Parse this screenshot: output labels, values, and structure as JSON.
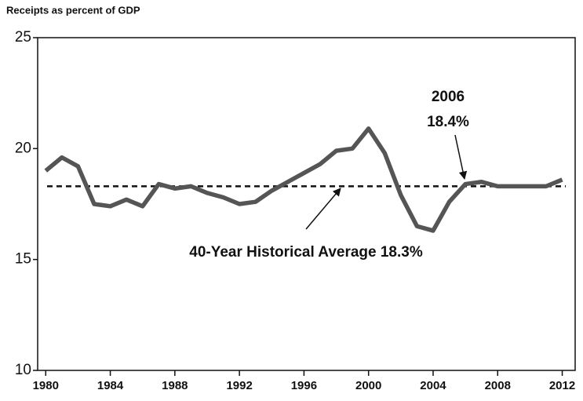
{
  "chart_data": {
    "type": "line",
    "title": "Receipts as percent of GDP",
    "x": [
      1980,
      1981,
      1982,
      1983,
      1984,
      1985,
      1986,
      1987,
      1988,
      1989,
      1990,
      1991,
      1992,
      1993,
      1994,
      1995,
      1996,
      1997,
      1998,
      1999,
      2000,
      2001,
      2002,
      2003,
      2004,
      2005,
      2006,
      2007,
      2008,
      2009,
      2010,
      2011,
      2012
    ],
    "series": [
      {
        "name": "Receipts",
        "color": "#555555",
        "values": [
          19.0,
          19.6,
          19.2,
          17.5,
          17.4,
          17.7,
          17.4,
          18.4,
          18.2,
          18.3,
          18.0,
          17.8,
          17.5,
          17.6,
          18.1,
          18.5,
          18.9,
          19.3,
          19.9,
          20.0,
          20.9,
          19.8,
          17.9,
          16.5,
          16.3,
          17.6,
          18.4,
          18.5,
          18.3,
          18.3,
          18.3,
          18.3,
          18.6
        ]
      }
    ],
    "reference_line": 18.3,
    "annotations": [
      "2006",
      "18.4%",
      "40-Year Historical Average 18.3%"
    ],
    "xlim": [
      1979.5,
      2012.8
    ],
    "xticks": [
      1980,
      1984,
      1988,
      1992,
      1996,
      2000,
      2004,
      2008,
      2012
    ],
    "ylim": [
      10,
      25
    ],
    "yticks": [
      10,
      15,
      20,
      25
    ]
  }
}
